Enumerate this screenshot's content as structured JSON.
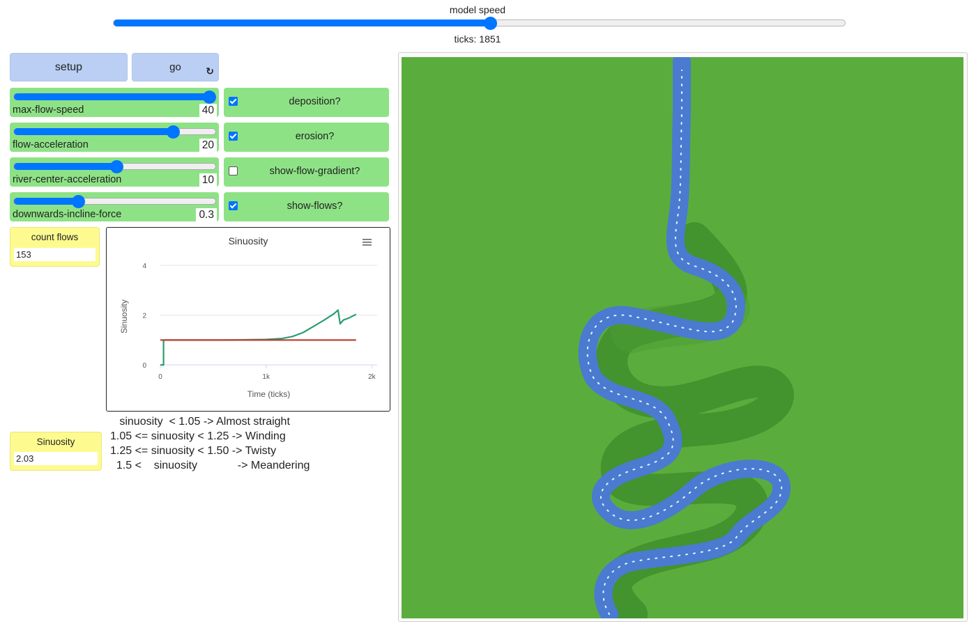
{
  "speed": {
    "label": "model speed",
    "fraction": 0.515
  },
  "ticks_label": "ticks: 1851",
  "buttons": {
    "setup": "setup",
    "go": "go",
    "forever_icon": "reload-icon"
  },
  "sliders": [
    {
      "label": "max-flow-speed",
      "value": "40",
      "fraction": 0.97
    },
    {
      "label": "flow-acceleration",
      "value": "20",
      "fraction": 0.79
    },
    {
      "label": "river-center-acceleration",
      "value": "10",
      "fraction": 0.51
    },
    {
      "label": "downwards-incline-force",
      "value": "0.3",
      "fraction": 0.32
    }
  ],
  "switches": [
    {
      "label": "deposition?",
      "checked": true
    },
    {
      "label": "erosion?",
      "checked": true
    },
    {
      "label": "show-flow-gradient?",
      "checked": false
    },
    {
      "label": "show-flows?",
      "checked": true
    }
  ],
  "monitors": {
    "count_flows": {
      "label": "count flows",
      "value": "153"
    },
    "sinuosity": {
      "label": "Sinuosity",
      "value": "2.03"
    }
  },
  "note": {
    "line1": "   sinuosity  < 1.05 -> Almost straight",
    "line2": "1.05 <= sinuosity < 1.25 -> Winding",
    "line3": "1.25 <= sinuosity < 1.50 -> Twisty",
    "line4": "  1.5 <    sinuosity             -> Meandering"
  },
  "plot": {
    "menu_icon": "hamburger-menu-icon",
    "chart_data": {
      "type": "line",
      "title": "Sinuosity",
      "xlabel": "Time (ticks)",
      "ylabel": "Sinuosity",
      "xlim": [
        0,
        2050
      ],
      "ylim": [
        0,
        4
      ],
      "x_ticks": [
        0,
        1000,
        2000
      ],
      "x_tick_labels": [
        "0",
        "1k",
        "2k"
      ],
      "y_ticks": [
        0,
        2,
        4
      ],
      "y_tick_labels": [
        "0",
        "2",
        "4"
      ],
      "grid": true,
      "series": [
        {
          "color": "#2a9d6f",
          "points": [
            [
              0,
              0
            ],
            [
              30,
              0
            ],
            [
              30,
              1.0
            ],
            [
              200,
              1.0
            ],
            [
              600,
              1.0
            ],
            [
              1000,
              1.02
            ],
            [
              1150,
              1.06
            ],
            [
              1250,
              1.14
            ],
            [
              1350,
              1.3
            ],
            [
              1450,
              1.55
            ],
            [
              1550,
              1.8
            ],
            [
              1640,
              2.05
            ],
            [
              1680,
              2.2
            ],
            [
              1700,
              1.65
            ],
            [
              1730,
              1.8
            ],
            [
              1780,
              1.88
            ],
            [
              1851,
              2.03
            ]
          ]
        },
        {
          "color": "#c0392b",
          "points": [
            [
              0,
              1.0
            ],
            [
              1851,
              1.0
            ]
          ]
        }
      ]
    }
  },
  "world": {
    "colors": {
      "land": "#5aad3c",
      "vegetation": "#3f8e2c",
      "river": "#4a7bd0",
      "flow": "#ffffff"
    }
  }
}
